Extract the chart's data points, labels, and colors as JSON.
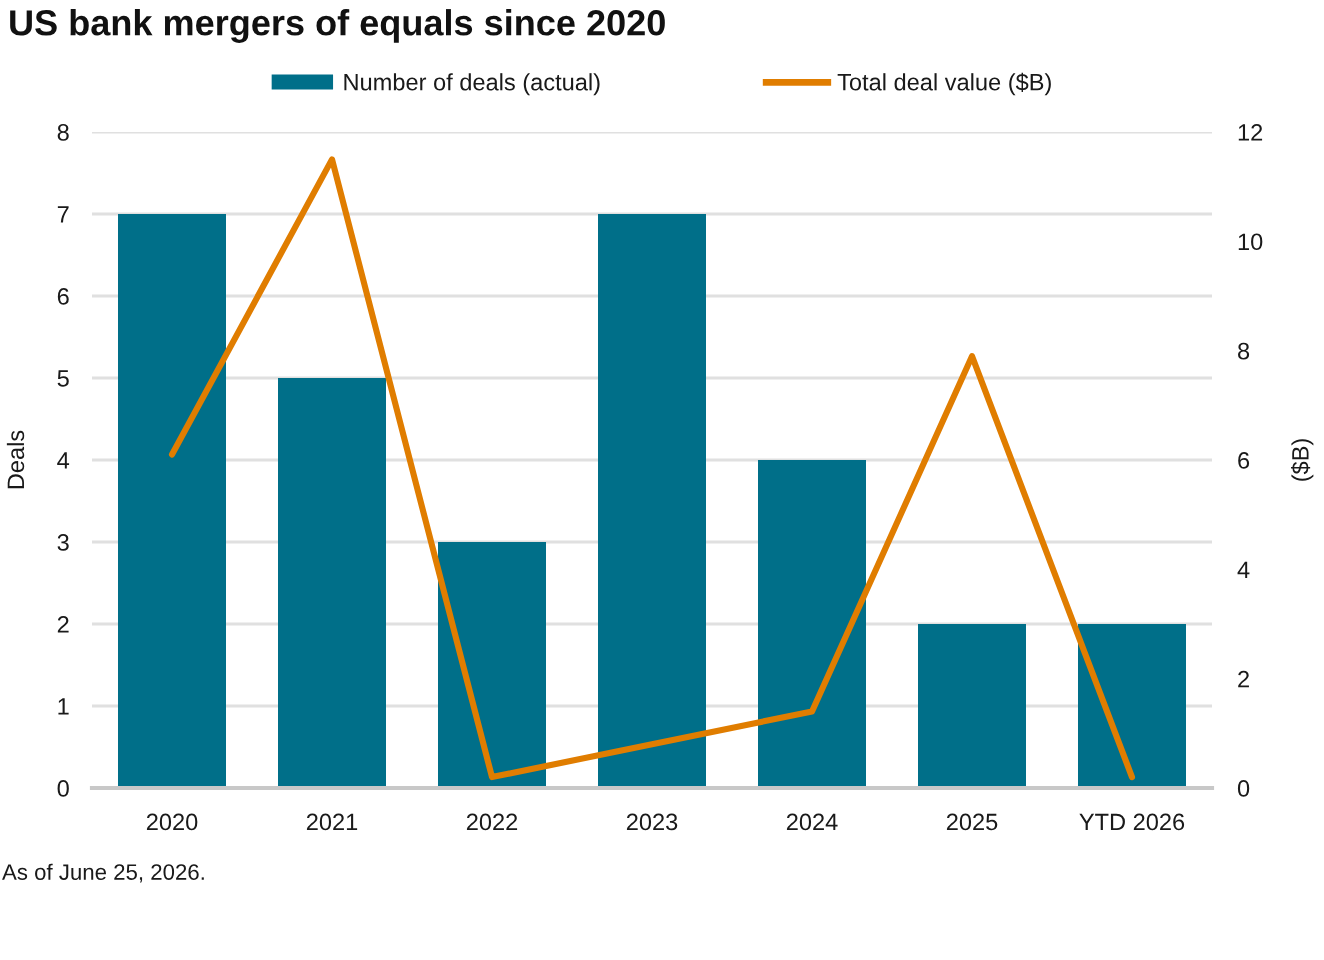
{
  "chart_data": {
    "type": "bar",
    "title": "US bank mergers of equals since 2020",
    "categories": [
      "2020",
      "2021",
      "2022",
      "2023",
      "2024",
      "2025",
      "YTD 2026"
    ],
    "series": [
      {
        "name": "Number of deals (actual)",
        "color": "#006f89",
        "values": [
          7,
          5,
          3,
          7,
          4,
          2,
          2
        ]
      },
      {
        "name": "Total deal value ($B)",
        "type": "line",
        "axis": "y2",
        "color": "#e07d00",
        "values": [
          6.1,
          11.5,
          0.2,
          0.8,
          1.4,
          7.9,
          0.2
        ]
      }
    ],
    "ylabel": "Deals",
    "y2label": "($B)",
    "ylim": [
      0,
      8
    ],
    "yticks": [
      0,
      1,
      2,
      3,
      4,
      5,
      6,
      7,
      8
    ],
    "y2lim": [
      0,
      12
    ],
    "y2ticks": [
      0,
      2,
      4,
      6,
      8,
      10,
      12
    ],
    "grid": "y",
    "legend": "top",
    "annotations": [
      "As of June 25, 2026."
    ]
  }
}
